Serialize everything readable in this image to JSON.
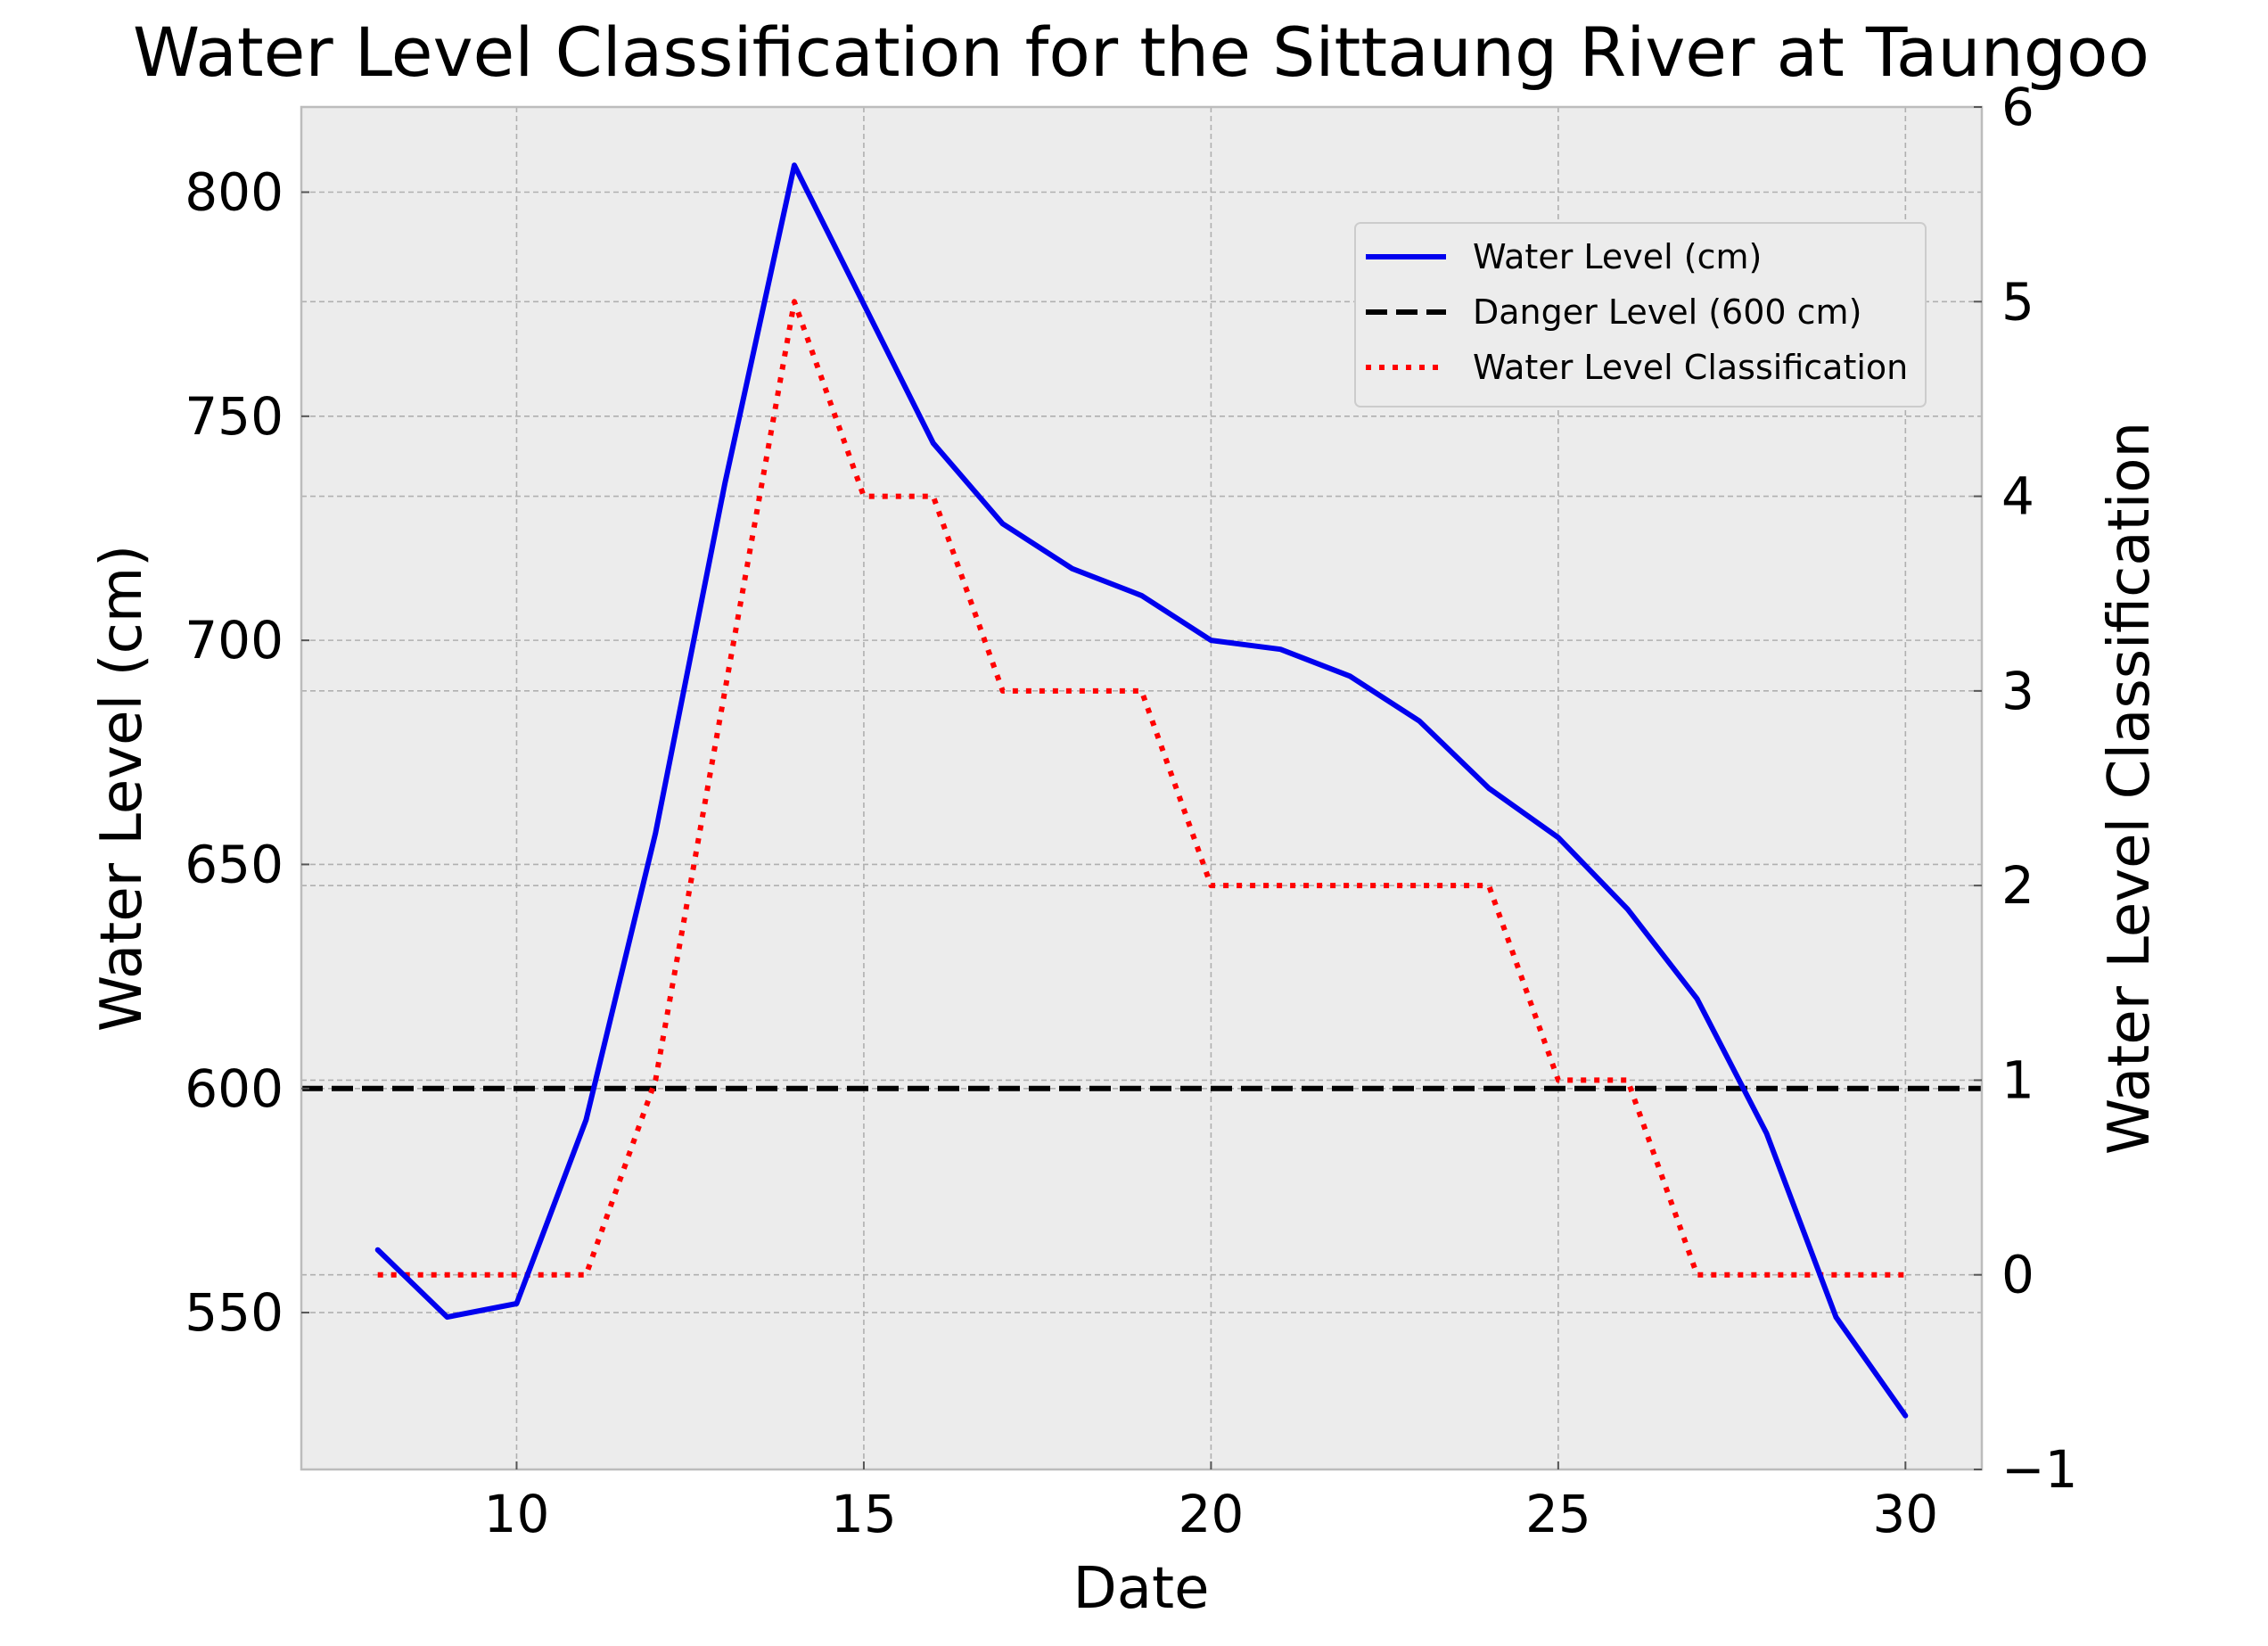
{
  "chart_data": {
    "type": "line",
    "title": "Water Level Classification for the Sittaung River at Taungoo",
    "xlabel": "Date",
    "ylabel": "Water Level (cm)",
    "y2label": "Water Level Classification",
    "xlim": [
      6.9,
      31.1
    ],
    "ylim": [
      515,
      819
    ],
    "y2lim": [
      -1,
      6
    ],
    "xticks": [
      10,
      15,
      20,
      25,
      30
    ],
    "yticks": [
      550,
      600,
      650,
      700,
      750,
      800
    ],
    "y2ticks": [
      -1,
      0,
      1,
      2,
      3,
      4,
      5,
      6
    ],
    "grid": true,
    "legend_position": "upper right",
    "series": [
      {
        "name": "Water Level (cm)",
        "axis": "left",
        "style": "solid",
        "color": "#0000ee",
        "x": [
          8,
          9,
          10,
          11,
          12,
          13,
          14,
          15,
          16,
          17,
          18,
          19,
          20,
          21,
          22,
          23,
          24,
          25,
          26,
          27,
          28,
          29,
          30
        ],
        "values": [
          564,
          549,
          552,
          593,
          657,
          735,
          806,
          775,
          744,
          726,
          716,
          710,
          700,
          698,
          692,
          682,
          667,
          656,
          640,
          620,
          590,
          549,
          527
        ]
      },
      {
        "name": "Danger Level (600 cm)",
        "axis": "left",
        "style": "dashed",
        "color": "#000000",
        "constant": 600
      },
      {
        "name": "Water Level Classification",
        "axis": "right",
        "style": "dotted",
        "color": "#ff0000",
        "x": [
          8,
          9,
          10,
          11,
          12,
          13,
          14,
          15,
          16,
          17,
          18,
          19,
          20,
          21,
          22,
          23,
          24,
          25,
          26,
          27,
          28,
          29,
          30
        ],
        "values": [
          0,
          0,
          0,
          0,
          1,
          3,
          5,
          4,
          4,
          3,
          3,
          3,
          2,
          2,
          2,
          2,
          2,
          1,
          1,
          0,
          0,
          0,
          0
        ]
      }
    ]
  }
}
